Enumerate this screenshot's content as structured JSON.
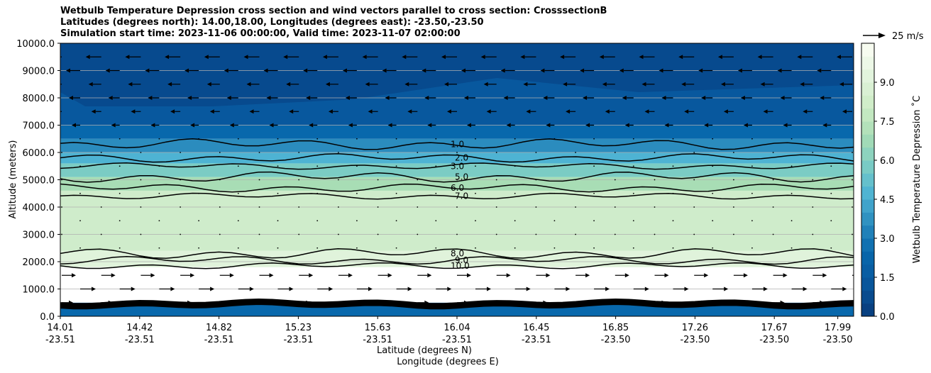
{
  "figure": {
    "title_lines": [
      "Wetbulb Temperature Depression cross section and wind vectors parallel to cross section: CrosssectionB",
      "Latitudes (degrees north): 14.00,18.00, Longitudes (degrees east): -23.50,-23.50",
      "Simulation start time: 2023-11-06 00:00:00, Valid time: 2023-11-07 02:00:00"
    ]
  },
  "chart_data": {
    "type": "heatmap",
    "subtype": "filled-contour cross section with wind vectors",
    "ylabel": "Altitude (meters)",
    "xlabel_lat": "Latitude (degrees N)",
    "xlabel_lon": "Longitude (degrees E)",
    "ylim": [
      0,
      10000
    ],
    "y_ticks": [
      "0.0",
      "1000.0",
      "2000.0",
      "3000.0",
      "4000.0",
      "5000.0",
      "6000.0",
      "7000.0",
      "8000.0",
      "9000.0",
      "10000.0"
    ],
    "x_ticks": [
      {
        "lat": "14.01",
        "lon": "-23.51",
        "f": 0.0
      },
      {
        "lat": "14.42",
        "lon": "-23.51",
        "f": 0.1
      },
      {
        "lat": "14.82",
        "lon": "-23.51",
        "f": 0.2
      },
      {
        "lat": "15.23",
        "lon": "-23.51",
        "f": 0.3
      },
      {
        "lat": "15.63",
        "lon": "-23.51",
        "f": 0.4
      },
      {
        "lat": "16.04",
        "lon": "-23.51",
        "f": 0.5
      },
      {
        "lat": "16.45",
        "lon": "-23.51",
        "f": 0.6
      },
      {
        "lat": "16.85",
        "lon": "-23.50",
        "f": 0.7
      },
      {
        "lat": "17.26",
        "lon": "-23.50",
        "f": 0.8
      },
      {
        "lat": "17.67",
        "lon": "-23.50",
        "f": 0.9
      },
      {
        "lat": "17.99",
        "lon": "-23.50",
        "f": 0.98
      }
    ],
    "colorbar": {
      "label": "Wetbulb Temperature Depression ˚C",
      "range": [
        0,
        10.5
      ],
      "ticks": [
        "0.0",
        "1.5",
        "3.0",
        "4.5",
        "6.0",
        "7.5",
        "9.0"
      ],
      "colors": [
        "#084081",
        "#08589e",
        "#0868ac",
        "#2b8cbe",
        "#4eb3d3",
        "#7bccc4",
        "#a8ddb5",
        "#ccebc5",
        "#e0f3db",
        "#f7fcf0"
      ]
    },
    "quiver_key": {
      "label": "25 m/s",
      "value": 25
    },
    "layers": [
      {
        "alt": [
          0,
          500
        ],
        "wtd": 0.5,
        "color": "#0868ac"
      },
      {
        "alt": [
          500,
          1800
        ],
        "wtd": 11,
        "color": "#ffffff"
      },
      {
        "alt": [
          1800,
          2400
        ],
        "wtd": 9,
        "color": "#e0f3db"
      },
      {
        "alt": [
          2400,
          4600
        ],
        "wtd": 8,
        "color": "#cfeccb"
      },
      {
        "alt": [
          4600,
          5100
        ],
        "wtd": 6.5,
        "color": "#a8ddb5"
      },
      {
        "alt": [
          5100,
          5600
        ],
        "wtd": 5,
        "color": "#7bccc4"
      },
      {
        "alt": [
          5600,
          6000
        ],
        "wtd": 4,
        "color": "#4eb3d3"
      },
      {
        "alt": [
          6000,
          6500
        ],
        "wtd": 2.5,
        "color": "#2b8cbe"
      },
      {
        "alt": [
          6500,
          7000
        ],
        "wtd": 1.5,
        "color": "#0868ac"
      },
      {
        "alt": [
          7000,
          10000
        ],
        "wtd": 0.8,
        "color": "#08589e"
      }
    ],
    "contours": [
      {
        "level": "10.0",
        "alt": 1850
      },
      {
        "level": "9.0",
        "alt": 2050
      },
      {
        "level": "8.0",
        "alt": 2300
      },
      {
        "level": "7.0",
        "alt": 4400
      },
      {
        "level": "6.0",
        "alt": 4700
      },
      {
        "level": "5.0",
        "alt": 5100
      },
      {
        "level": "3.0",
        "alt": 5500
      },
      {
        "level": "2.0",
        "alt": 5800
      },
      {
        "level": "1.0",
        "alt": 6300
      }
    ],
    "wind_rows": [
      {
        "alt": 9500,
        "u": -8
      },
      {
        "alt": 9000,
        "u": -7
      },
      {
        "alt": 8500,
        "u": -6
      },
      {
        "alt": 8000,
        "u": -5
      },
      {
        "alt": 7500,
        "u": -4
      },
      {
        "alt": 7000,
        "u": -3
      },
      {
        "alt": 1500,
        "u": 7
      },
      {
        "alt": 1000,
        "u": 8
      },
      {
        "alt": 500,
        "u": 5
      }
    ]
  }
}
